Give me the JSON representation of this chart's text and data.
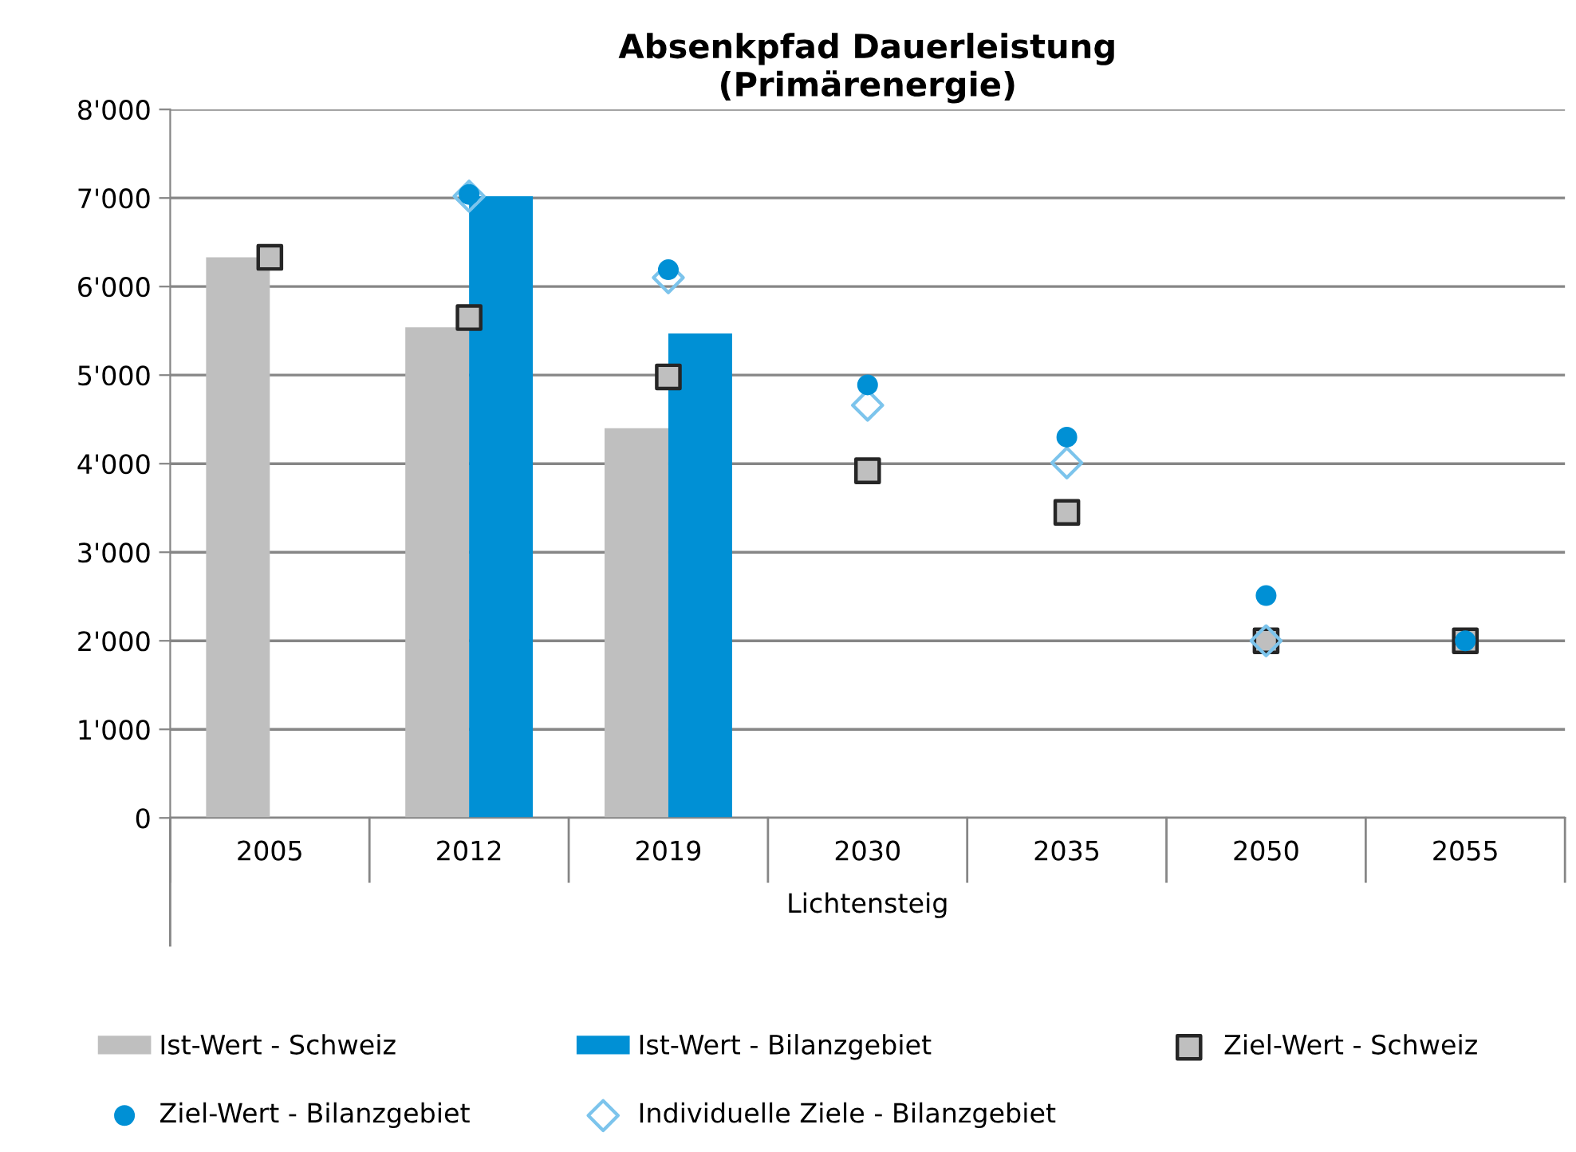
{
  "chart_data": {
    "type": "bar",
    "title": "Absenkpfad Dauerleistung\n(Primärenergie)",
    "xlabel": "Lichtensteig",
    "categories": [
      "2005",
      "2012",
      "2019",
      "2030",
      "2035",
      "2050",
      "2055"
    ],
    "ylim": [
      0,
      8000
    ],
    "yticks": [
      {
        "value": 0,
        "label": "0"
      },
      {
        "value": 1000,
        "label": "1'000"
      },
      {
        "value": 2000,
        "label": "2'000"
      },
      {
        "value": 3000,
        "label": "3'000"
      },
      {
        "value": 4000,
        "label": "4'000"
      },
      {
        "value": 5000,
        "label": "5'000"
      },
      {
        "value": 6000,
        "label": "6'000"
      },
      {
        "value": 7000,
        "label": "7'000"
      },
      {
        "value": 8000,
        "label": "8'000"
      }
    ],
    "grid": "y",
    "legend": "bottom",
    "series": [
      {
        "name": "Ist-Wert - Schweiz",
        "color": "#bfbfbf",
        "values": [
          6330,
          5540,
          4400,
          null,
          null,
          null,
          null
        ]
      },
      {
        "name": "Ist-Wert - Bilanzgebiet",
        "color": "#0090d5",
        "values": [
          null,
          7020,
          5470,
          null,
          null,
          null,
          null
        ]
      },
      {
        "name": "Ziel-Wert - Schweiz",
        "type": "scatter",
        "marker": "square",
        "color": "#bfbfbf",
        "values": [
          6330,
          5650,
          4980,
          3920,
          3450,
          2000,
          2000
        ]
      },
      {
        "name": "Individuelle Ziele - Bilanzgebiet",
        "type": "scatter",
        "marker": "diamond",
        "color": "#7cc4ec",
        "values": [
          null,
          7020,
          6100,
          4660,
          4010,
          2000,
          null
        ]
      },
      {
        "name": "Ziel-Wert - Bilanzgebiet",
        "type": "scatter",
        "marker": "circle",
        "color": "#0090d5",
        "values": [
          null,
          7040,
          6190,
          4890,
          4300,
          2510,
          2000
        ]
      }
    ]
  }
}
